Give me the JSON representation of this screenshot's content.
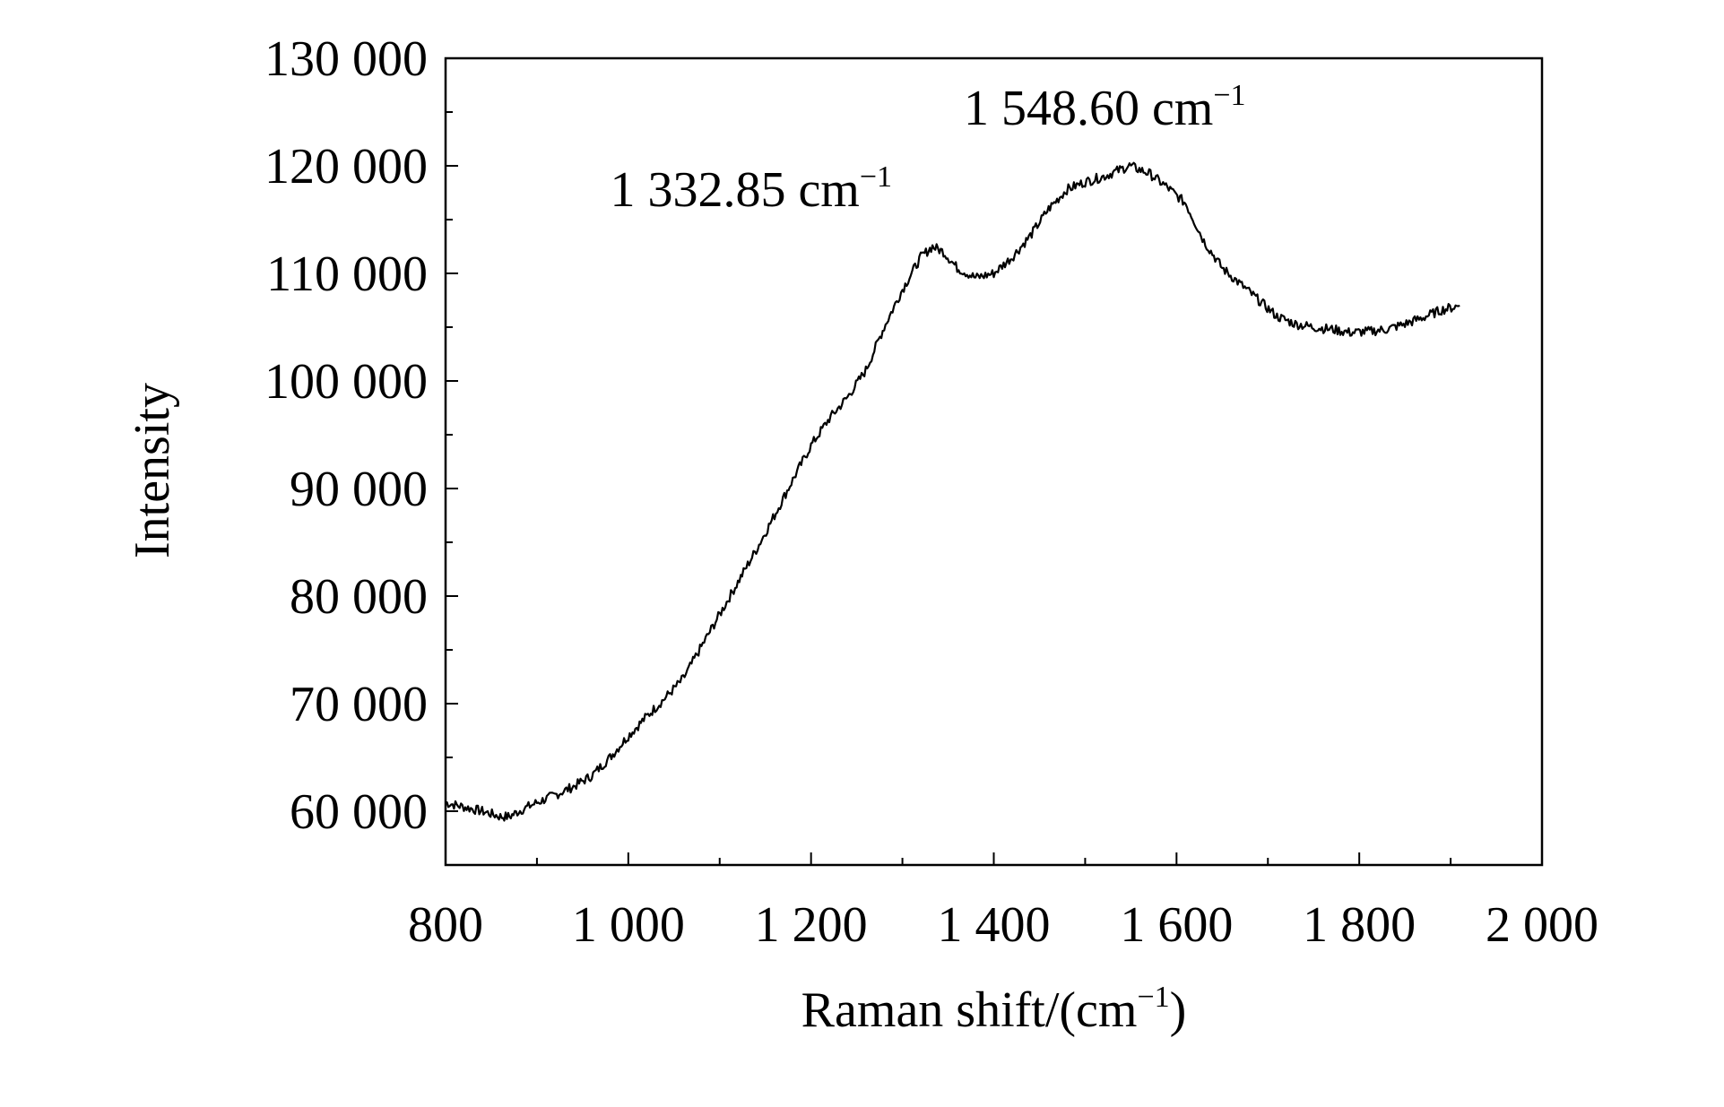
{
  "chart_data": {
    "type": "line",
    "xlabel": "Raman shift/(cm",
    "xlabel_sup": "−1",
    "xlabel_tail": ")",
    "ylabel": "Intensity",
    "xlim": [
      800,
      2000
    ],
    "ylim": [
      55000,
      130000
    ],
    "x_ticks": [
      800,
      1000,
      1200,
      1400,
      1600,
      1800,
      2000
    ],
    "x_tick_labels": [
      "800",
      "1 000",
      "1 200",
      "1 400",
      "1 600",
      "1 800",
      "2 000"
    ],
    "y_ticks": [
      60000,
      70000,
      80000,
      90000,
      100000,
      110000,
      120000,
      130000
    ],
    "y_tick_labels": [
      "60 000",
      "70 000",
      "80 000",
      "90 000",
      "100 000",
      "110 000",
      "120 000",
      "130 000"
    ],
    "annotations": [
      {
        "text": "1 332.85 cm",
        "sup": "−1",
        "x": 1332.85,
        "y": 112500
      },
      {
        "text": "1 548.60 cm",
        "sup": "−1",
        "x": 1548.6,
        "y": 120000
      }
    ],
    "grid": false,
    "line_color": "#000000",
    "series": [
      {
        "x": [
          800,
          820,
          840,
          860,
          870,
          880,
          900,
          920,
          940,
          960,
          980,
          1000,
          1020,
          1040,
          1060,
          1080,
          1100,
          1120,
          1140,
          1160,
          1180,
          1200,
          1220,
          1240,
          1260,
          1280,
          1300,
          1320,
          1332.85,
          1345,
          1360,
          1380,
          1400,
          1420,
          1440,
          1460,
          1480,
          1500,
          1520,
          1548.6,
          1570,
          1590,
          1610,
          1630,
          1650,
          1670,
          1690,
          1710,
          1730,
          1750,
          1770,
          1790,
          1810,
          1830,
          1850,
          1870,
          1890,
          1910
        ],
        "y": [
          60800,
          60400,
          60000,
          59500,
          59500,
          60000,
          60800,
          61500,
          62300,
          63300,
          65000,
          67000,
          68800,
          70500,
          72300,
          75300,
          78300,
          81300,
          84300,
          87500,
          90800,
          94000,
          96500,
          98500,
          101000,
          105000,
          108500,
          111500,
          112500,
          112000,
          110500,
          109600,
          110000,
          111500,
          113500,
          116000,
          117800,
          118500,
          119000,
          120000,
          119300,
          118000,
          116500,
          113000,
          110500,
          109000,
          107500,
          106000,
          105300,
          105000,
          104800,
          104500,
          104600,
          104800,
          105300,
          105900,
          106600,
          107000
        ]
      }
    ]
  }
}
